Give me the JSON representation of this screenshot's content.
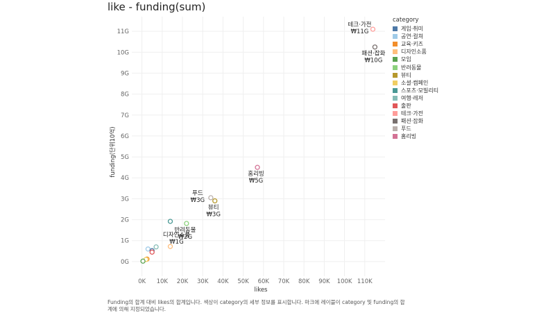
{
  "chart_data": {
    "type": "scatter",
    "title": "like - funding(sum)",
    "xlabel": "likes",
    "ylabel": "funding(단위10억)",
    "xlim": [
      -5000,
      120000
    ],
    "ylim": [
      -0.7,
      11.7
    ],
    "x_ticks": [
      0,
      10000,
      20000,
      30000,
      40000,
      50000,
      60000,
      70000,
      80000,
      90000,
      100000,
      110000
    ],
    "x_tick_labels": [
      "0K",
      "10K",
      "20K",
      "30K",
      "40K",
      "50K",
      "60K",
      "70K",
      "80K",
      "90K",
      "100K",
      "110K"
    ],
    "y_ticks": [
      0,
      1,
      2,
      3,
      4,
      5,
      6,
      7,
      8,
      9,
      10,
      11
    ],
    "y_tick_labels": [
      "0G",
      "1G",
      "2G",
      "3G",
      "4G",
      "5G",
      "6G",
      "7G",
      "8G",
      "9G",
      "10G",
      "11G"
    ],
    "grid": true,
    "legend_title": "category",
    "legend_position": "right",
    "categories": [
      {
        "name": "게임·취미",
        "color": "#4e79a7"
      },
      {
        "name": "공연·컬쳐",
        "color": "#a0cbe8"
      },
      {
        "name": "교육·키즈",
        "color": "#f28e2b"
      },
      {
        "name": "디자인소품",
        "color": "#ffbe7d"
      },
      {
        "name": "모임",
        "color": "#59a14f"
      },
      {
        "name": "반려동물",
        "color": "#8cd17d"
      },
      {
        "name": "뷰티",
        "color": "#b6992d"
      },
      {
        "name": "소셜·캠페인",
        "color": "#f1ce63"
      },
      {
        "name": "스포츠·모빌리티",
        "color": "#499894"
      },
      {
        "name": "여행·레저",
        "color": "#86bcb6"
      },
      {
        "name": "출판",
        "color": "#e15759"
      },
      {
        "name": "테크·가전",
        "color": "#ff9d9a"
      },
      {
        "name": "패션·잡화",
        "color": "#79706e"
      },
      {
        "name": "푸드",
        "color": "#bab0ac"
      },
      {
        "name": "홈리빙",
        "color": "#d37295"
      }
    ],
    "points": [
      {
        "category": "테크·가전",
        "x": 114000,
        "y": 11.1,
        "labels": [
          "테크·가전",
          "₩11G"
        ],
        "label_pos": "left"
      },
      {
        "category": "패션·잡화",
        "x": 115000,
        "y": 10.25,
        "labels": [
          "패션·잡화",
          "₩10G"
        ],
        "label_pos": "below"
      },
      {
        "category": "홈리빙",
        "x": 57000,
        "y": 4.5,
        "labels": [
          "홈리빙",
          "₩5G"
        ],
        "label_pos": "below"
      },
      {
        "category": "푸드",
        "x": 34000,
        "y": 3.05,
        "labels": [
          "푸드",
          "₩3G"
        ],
        "label_pos": "left"
      },
      {
        "category": "뷰티",
        "x": 36000,
        "y": 2.9,
        "labels": [
          "뷰티",
          "₩3G"
        ],
        "label_pos": "below"
      },
      {
        "category": "반려동물",
        "x": 22000,
        "y": 1.82,
        "labels": [
          "반려동물",
          "₩2G"
        ],
        "label_pos": "below"
      },
      {
        "category": "스포츠·모빌리티",
        "x": 14000,
        "y": 1.92,
        "labels": [],
        "label_pos": "none"
      },
      {
        "category": "디자인소품",
        "x": 14000,
        "y": 0.72,
        "labels": [
          "디자인소품",
          "₩1G"
        ],
        "label_pos": "above"
      },
      {
        "category": "공연·컬쳐",
        "x": 3000,
        "y": 0.6,
        "labels": [],
        "label_pos": "none"
      },
      {
        "category": "여행·레저",
        "x": 7000,
        "y": 0.7,
        "labels": [],
        "label_pos": "none"
      },
      {
        "category": "게임·취미",
        "x": 5000,
        "y": 0.52,
        "labels": [],
        "label_pos": "none"
      },
      {
        "category": "출판",
        "x": 5000,
        "y": 0.45,
        "labels": [],
        "label_pos": "none"
      },
      {
        "category": "교육·키즈",
        "x": 2500,
        "y": 0.12,
        "labels": [],
        "label_pos": "none"
      },
      {
        "category": "소셜·캠페인",
        "x": 2000,
        "y": 0.1,
        "labels": [],
        "label_pos": "none"
      },
      {
        "category": "모임",
        "x": 500,
        "y": 0.02,
        "labels": [],
        "label_pos": "none"
      }
    ]
  },
  "caption": "Funding의 합계 대비 likes의 합계입니다.  색상이 category의 세부 정보를 표시합니다.  마크에 레이블이 category 및 funding의 합계에 의해 지정되었습니다."
}
